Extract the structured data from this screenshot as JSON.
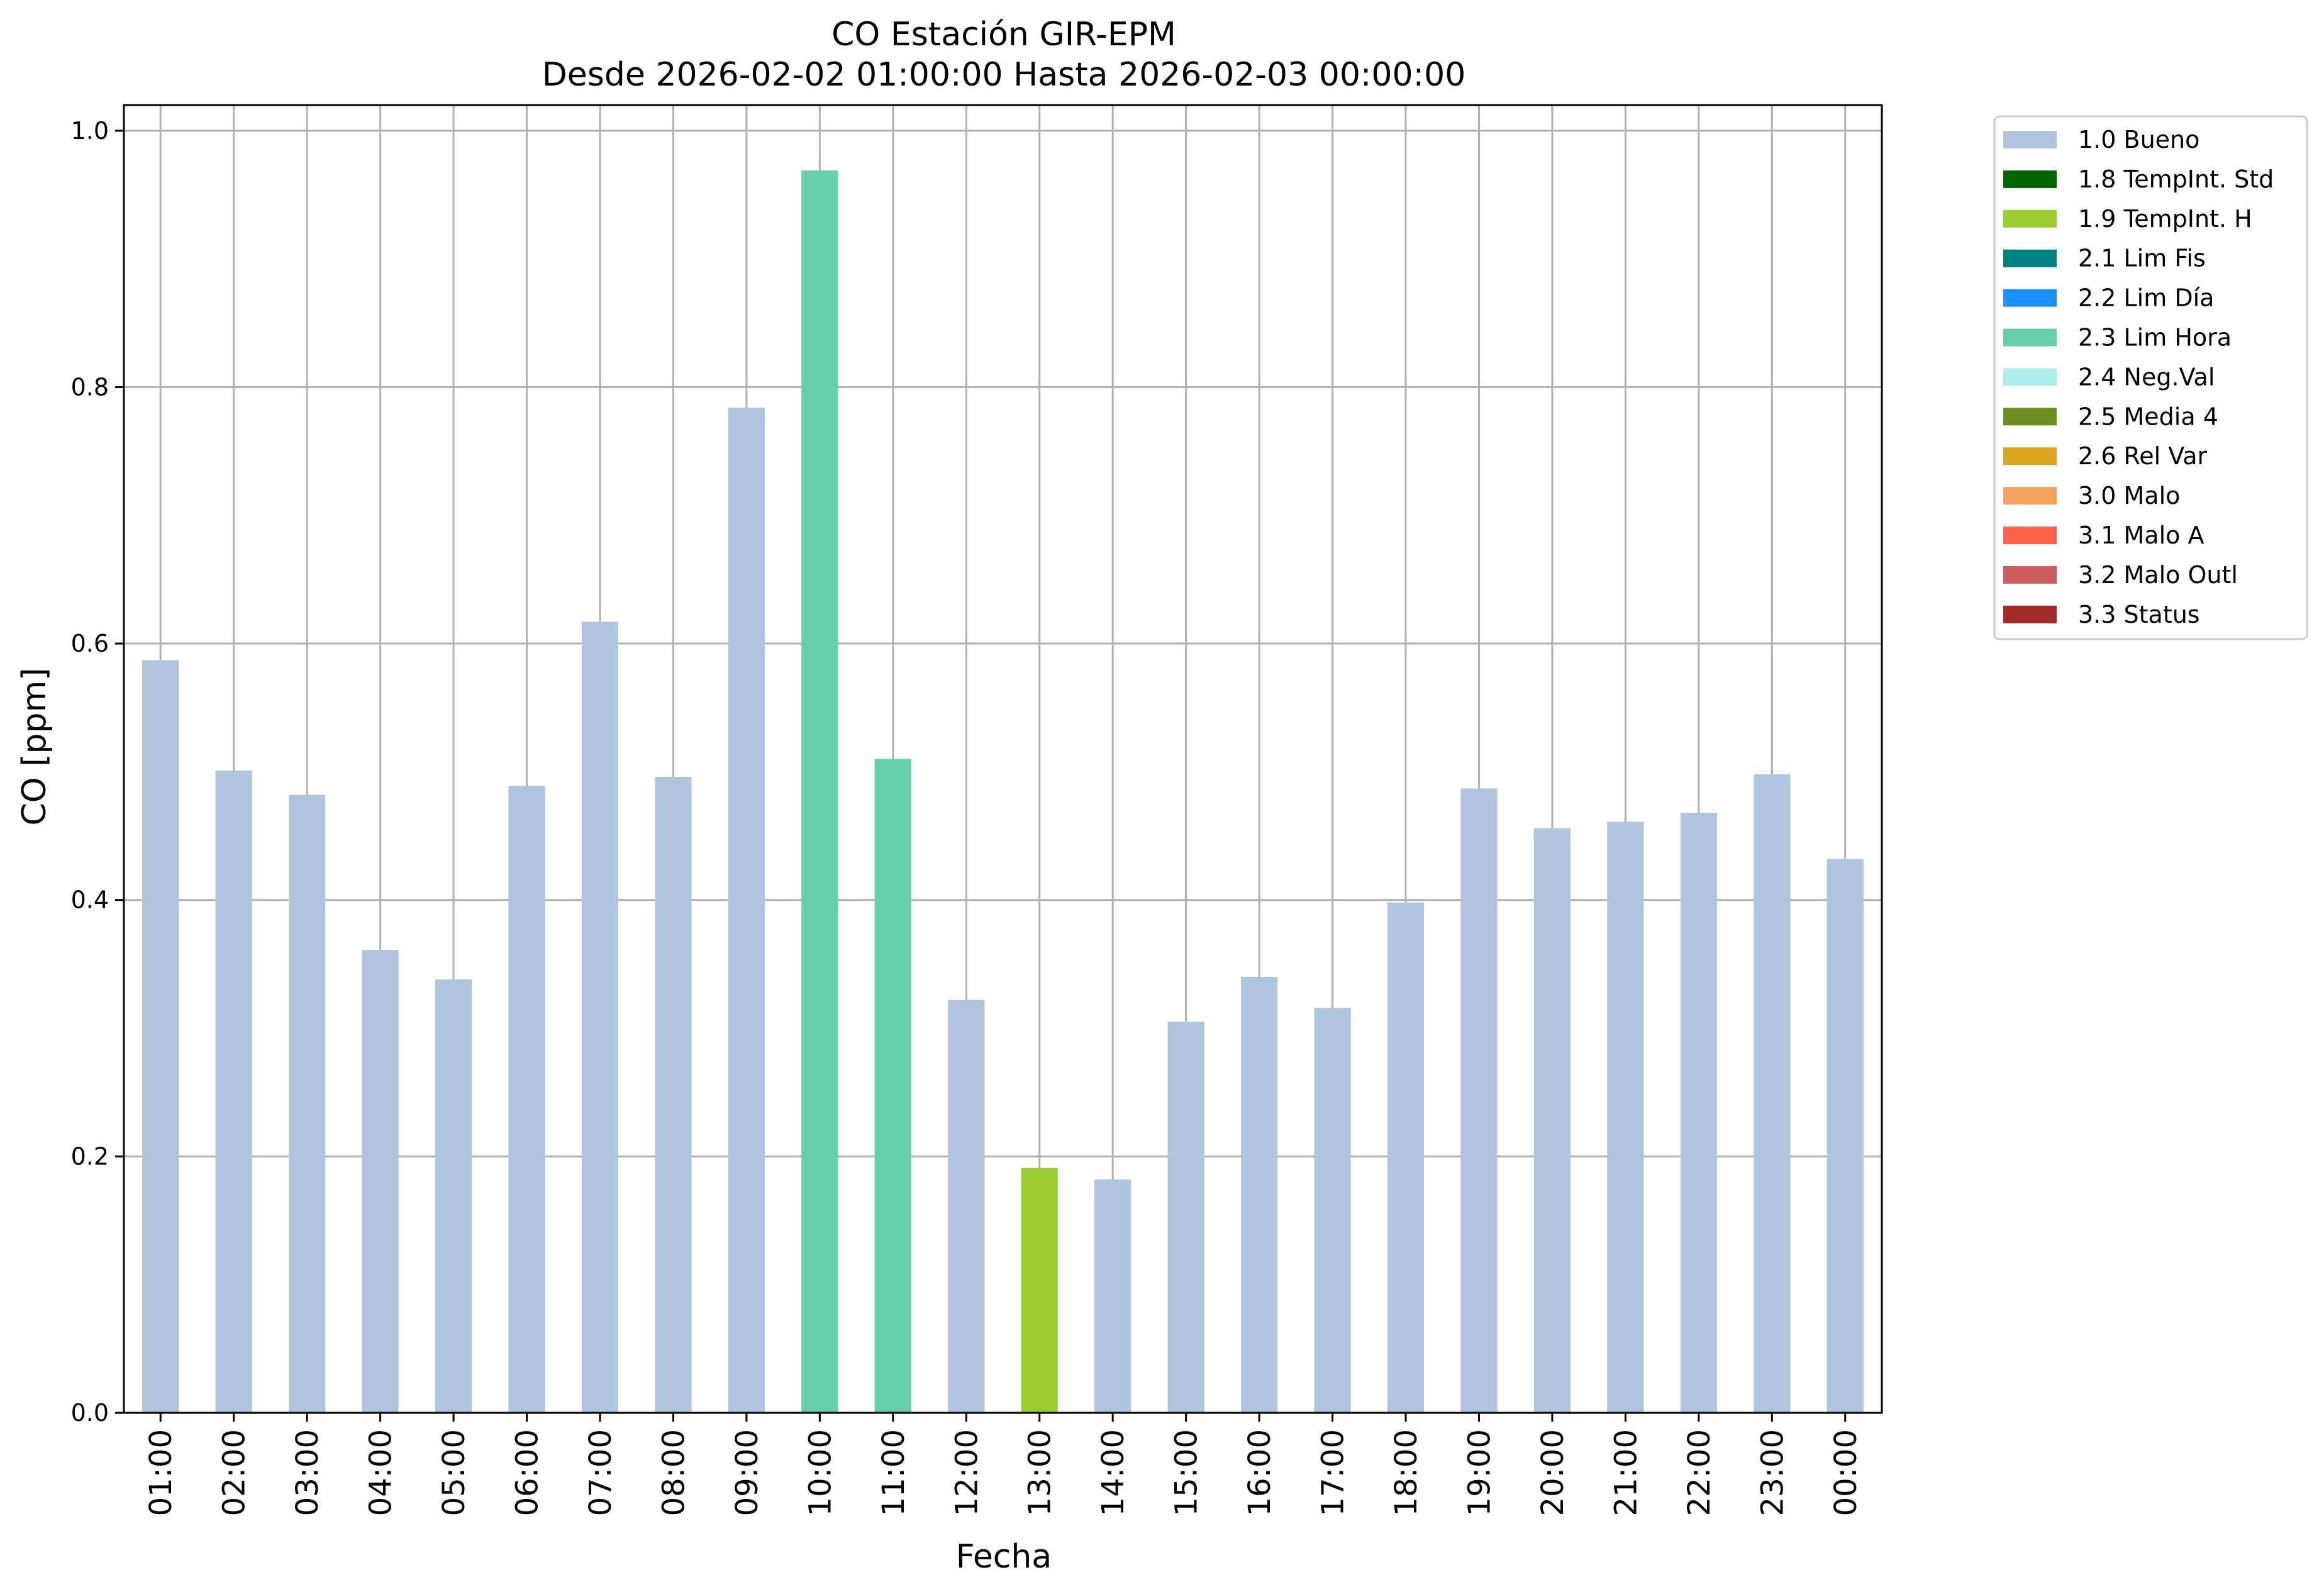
{
  "chart_data": {
    "type": "bar",
    "title": "CO Estación GIR-EPM",
    "subtitle": "Desde 2026-02-02 01:00:00 Hasta 2026-02-03 00:00:00",
    "xlabel": "Fecha",
    "ylabel": "CO [ppm]",
    "ylim": [
      0,
      1.02
    ],
    "yticks": [
      "0.0",
      "0.2",
      "0.4",
      "0.6",
      "0.8",
      "1.0"
    ],
    "grid": true,
    "legend_position": "outside-top-right",
    "categories": [
      "01:00",
      "02:00",
      "03:00",
      "04:00",
      "05:00",
      "06:00",
      "07:00",
      "08:00",
      "09:00",
      "10:00",
      "11:00",
      "12:00",
      "13:00",
      "14:00",
      "15:00",
      "16:00",
      "17:00",
      "18:00",
      "19:00",
      "20:00",
      "21:00",
      "22:00",
      "23:00",
      "00:00"
    ],
    "values": [
      0.587,
      0.501,
      0.482,
      0.361,
      0.338,
      0.489,
      0.617,
      0.496,
      0.784,
      0.969,
      0.51,
      0.322,
      0.191,
      0.182,
      0.305,
      0.34,
      0.316,
      0.398,
      0.487,
      0.456,
      0.461,
      0.468,
      0.498,
      0.432
    ],
    "quality_flags": [
      "1.0 Bueno",
      "1.0 Bueno",
      "1.0 Bueno",
      "1.0 Bueno",
      "1.0 Bueno",
      "1.0 Bueno",
      "1.0 Bueno",
      "1.0 Bueno",
      "1.0 Bueno",
      "2.3 Lim Hora",
      "2.3 Lim Hora",
      "1.0 Bueno",
      "1.9 TempInt. H",
      "1.0 Bueno",
      "1.0 Bueno",
      "1.0 Bueno",
      "1.0 Bueno",
      "1.0 Bueno",
      "1.0 Bueno",
      "1.0 Bueno",
      "1.0 Bueno",
      "1.0 Bueno",
      "1.0 Bueno",
      "1.0 Bueno"
    ],
    "legend": [
      {
        "label": "1.0 Bueno",
        "color": "#b0c4de"
      },
      {
        "label": "1.8 TempInt. Std",
        "color": "#006400"
      },
      {
        "label": "1.9 TempInt. H",
        "color": "#9acd32"
      },
      {
        "label": "2.1 Lim Fis",
        "color": "#008080"
      },
      {
        "label": "2.2 Lim Día",
        "color": "#1e90ff"
      },
      {
        "label": "2.3 Lim Hora",
        "color": "#66cdaa"
      },
      {
        "label": "2.4 Neg.Val",
        "color": "#afeeee"
      },
      {
        "label": "2.5 Media 4",
        "color": "#6b8e23"
      },
      {
        "label": "2.6 Rel Var",
        "color": "#daa520"
      },
      {
        "label": "3.0 Malo",
        "color": "#f4a460"
      },
      {
        "label": "3.1 Malo A",
        "color": "#ff6347"
      },
      {
        "label": "3.2 Malo Outl",
        "color": "#cd5c5c"
      },
      {
        "label": "3.3 Status",
        "color": "#a52a2a"
      }
    ]
  }
}
